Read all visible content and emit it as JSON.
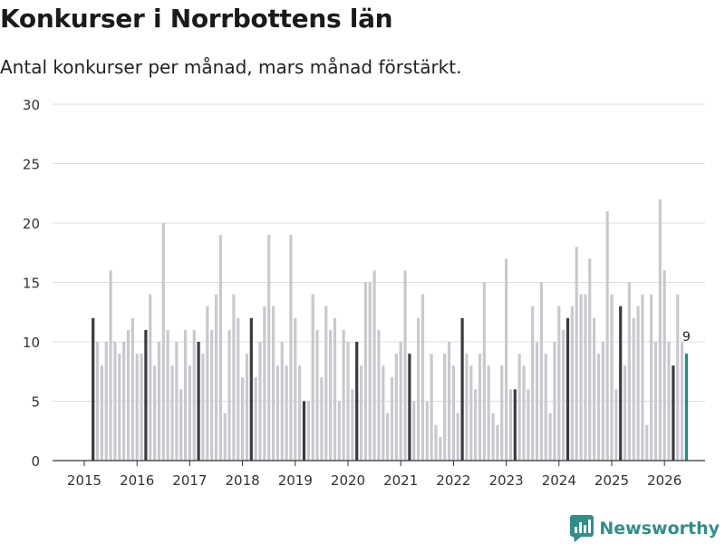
{
  "chart_data": {
    "type": "bar",
    "title": "Konkurser i Norrbottens län",
    "subtitle": "Antal konkurser per månad, mars månad förstärkt.",
    "start": "2015-03",
    "values": [
      12,
      10,
      8,
      10,
      16,
      10,
      9,
      10,
      11,
      12,
      9,
      9,
      11,
      14,
      8,
      10,
      20,
      11,
      8,
      10,
      6,
      11,
      8,
      11,
      10,
      9,
      13,
      11,
      14,
      19,
      4,
      11,
      14,
      12,
      7,
      9,
      12,
      7,
      10,
      13,
      19,
      13,
      8,
      10,
      8,
      19,
      12,
      8,
      5,
      5,
      14,
      11,
      7,
      13,
      11,
      12,
      5,
      11,
      10,
      6,
      10,
      8,
      15,
      15,
      16,
      11,
      8,
      4,
      7,
      9,
      10,
      16,
      9,
      5,
      12,
      14,
      5,
      9,
      3,
      2,
      9,
      10,
      8,
      4,
      12,
      9,
      8,
      6,
      9,
      15,
      8,
      4,
      3,
      8,
      17,
      6,
      6,
      9,
      8,
      6,
      13,
      10,
      15,
      9,
      4,
      10,
      13,
      11,
      12,
      13,
      18,
      14,
      14,
      17,
      12,
      9,
      10,
      21,
      14,
      6,
      13,
      8,
      15,
      12,
      13,
      14,
      3,
      14,
      10,
      22,
      16,
      10,
      8,
      14,
      10,
      9
    ],
    "highlight_month": "mars",
    "last_value_label": "9",
    "x_ticks": [
      "2015",
      "2016",
      "2017",
      "2018",
      "2019",
      "2020",
      "2021",
      "2022",
      "2023",
      "2024",
      "2025",
      "2026"
    ],
    "y_ticks": [
      "0",
      "5",
      "10",
      "15",
      "20",
      "25",
      "30"
    ],
    "ylim": [
      0,
      30
    ],
    "grid": true,
    "xlabel": "",
    "ylabel": "",
    "colors": {
      "bar": "#c9c8cf",
      "highlight": "#3a3a40",
      "latest": "#0f9488",
      "grid": "#dcdcdc",
      "axis": "#333333"
    }
  },
  "brand": {
    "name": "Newsworthy",
    "icon": "chart-bubble-icon",
    "color": "#2f8f8a"
  }
}
